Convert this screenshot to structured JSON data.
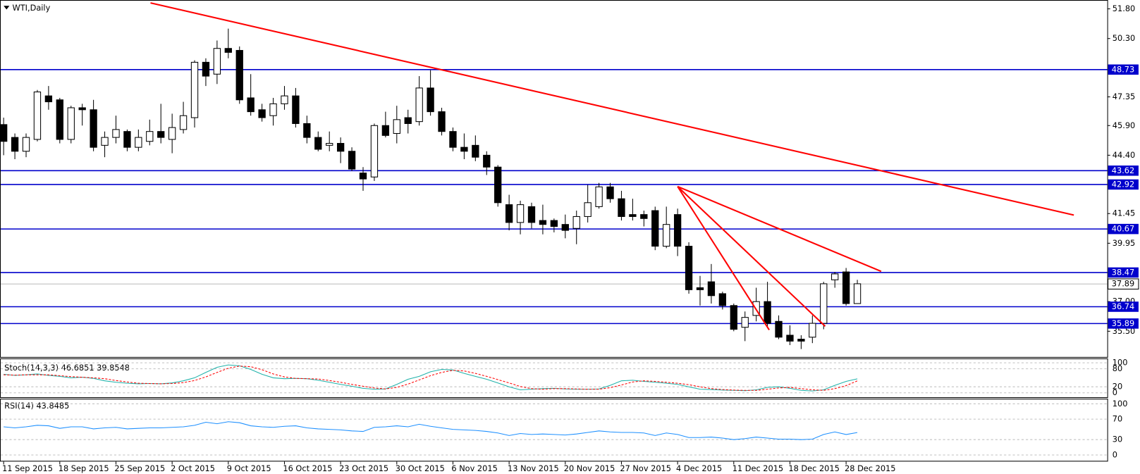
{
  "chart_data": [
    {
      "type": "candlestick",
      "title": "WTI,Daily",
      "categories": [
        "11 Sep 2015",
        null,
        null,
        null,
        null,
        "18 Sep 2015",
        null,
        null,
        null,
        null,
        "25 Sep 2015",
        null,
        null,
        null,
        null,
        "2 Oct 2015",
        null,
        null,
        null,
        null,
        "9 Oct 2015",
        null,
        null,
        null,
        null,
        "16 Oct 2015",
        null,
        null,
        null,
        null,
        "23 Oct 2015",
        null,
        null,
        null,
        null,
        "30 Oct 2015",
        null,
        null,
        null,
        null,
        "6 Nov 2015",
        null,
        null,
        null,
        null,
        "13 Nov 2015",
        null,
        null,
        null,
        null,
        "20 Nov 2015",
        null,
        null,
        null,
        null,
        "27 Nov 2015",
        null,
        null,
        null,
        null,
        "4 Dec 2015",
        null,
        null,
        null,
        null,
        "11 Dec 2015",
        null,
        null,
        null,
        null,
        "18 Dec 2015",
        null,
        null,
        null,
        null,
        "28 Dec 2015",
        null
      ],
      "open": [
        45.95,
        45.3,
        44.6,
        45.2,
        47.4,
        47.2,
        45.2,
        46.8,
        46.7,
        44.9,
        45.3,
        45.6,
        44.8,
        45.1,
        45.6,
        45.2,
        45.7,
        46.3,
        49.1,
        48.5,
        49.8,
        49.7,
        47.3,
        46.7,
        46.4,
        47.0,
        47.4,
        46.0,
        45.3,
        44.9,
        45.0,
        44.6,
        43.5,
        43.3,
        45.9,
        45.5,
        46.3,
        46.1,
        47.8,
        46.6,
        45.6,
        44.8,
        44.9,
        44.4,
        43.8,
        41.9,
        41.0,
        41.8,
        41.1,
        41.1,
        40.9,
        40.7,
        41.3,
        41.8,
        42.8,
        42.2,
        41.4,
        41.4,
        41.6,
        39.8,
        41.4,
        39.8,
        37.7,
        38.0,
        37.4,
        36.8,
        35.7,
        36.3,
        37.0,
        36.0,
        35.3,
        35.1,
        35.2,
        35.9,
        38.1,
        38.5,
        36.9
      ],
      "high": [
        46.3,
        45.5,
        45.5,
        47.7,
        47.9,
        47.3,
        46.9,
        47.0,
        47.2,
        45.6,
        46.4,
        45.7,
        45.7,
        46.2,
        47.0,
        46.5,
        47.1,
        49.2,
        49.3,
        50.2,
        50.8,
        49.9,
        48.5,
        47.0,
        47.3,
        47.9,
        47.8,
        46.4,
        45.6,
        45.6,
        45.3,
        44.8,
        43.8,
        46.0,
        46.6,
        46.9,
        46.7,
        48.4,
        48.7,
        46.8,
        45.8,
        45.5,
        45.4,
        44.6,
        43.9,
        42.4,
        42.1,
        42.0,
        41.9,
        41.2,
        41.4,
        41.6,
        42.9,
        43.0,
        43.0,
        42.6,
        42.2,
        41.6,
        41.8,
        41.8,
        41.7,
        40.0,
        38.3,
        38.9,
        37.5,
        36.9,
        36.5,
        37.7,
        38.0,
        36.3,
        35.8,
        35.3,
        36.3,
        38.0,
        38.5,
        38.7,
        38.1
      ],
      "low": [
        44.4,
        44.2,
        44.3,
        45.1,
        46.7,
        45.0,
        45.0,
        45.9,
        44.6,
        44.3,
        45.0,
        44.6,
        44.6,
        44.9,
        45.0,
        44.5,
        45.5,
        45.8,
        47.9,
        48.0,
        49.3,
        47.0,
        46.4,
        46.1,
        45.9,
        46.7,
        45.8,
        45.0,
        44.6,
        44.6,
        44.0,
        43.6,
        42.6,
        43.1,
        45.3,
        45.0,
        45.5,
        45.9,
        46.4,
        45.4,
        44.6,
        44.2,
        44.1,
        43.4,
        41.8,
        40.6,
        40.4,
        40.7,
        40.4,
        40.5,
        40.2,
        39.9,
        41.0,
        41.7,
        42.0,
        41.1,
        41.1,
        40.8,
        39.6,
        39.7,
        39.3,
        37.4,
        36.8,
        36.9,
        36.6,
        35.5,
        35.0,
        36.0,
        35.7,
        35.1,
        34.8,
        34.6,
        34.9,
        35.6,
        37.7,
        36.8,
        36.9
      ],
      "close": [
        45.1,
        44.6,
        45.3,
        47.6,
        47.1,
        45.2,
        46.8,
        46.7,
        44.8,
        45.3,
        45.7,
        44.8,
        45.3,
        45.6,
        45.3,
        45.8,
        46.4,
        49.1,
        48.4,
        49.8,
        49.6,
        47.2,
        46.6,
        46.3,
        47.0,
        47.4,
        46.0,
        45.3,
        44.7,
        45.0,
        44.6,
        43.7,
        43.2,
        45.9,
        45.4,
        46.2,
        46.0,
        47.8,
        46.6,
        45.6,
        44.8,
        44.6,
        44.3,
        43.8,
        42.0,
        41.0,
        41.9,
        41.0,
        40.9,
        40.8,
        40.6,
        41.3,
        42.0,
        42.8,
        42.2,
        41.3,
        41.3,
        41.2,
        39.8,
        40.9,
        39.8,
        37.6,
        37.6,
        37.3,
        36.8,
        35.6,
        36.2,
        37.0,
        35.9,
        35.2,
        35.0,
        35.0,
        35.9,
        37.9,
        38.4,
        36.9,
        37.9
      ],
      "ylim": [
        34.2,
        52.1
      ],
      "yticks": [
        {
          "value": 51.8,
          "label": "51.80"
        },
        {
          "value": 50.3,
          "label": "50.30"
        },
        47.35,
        {
          "value": 45.9,
          "label": "45.90"
        },
        {
          "value": 44.4,
          "label": "44.40"
        },
        41.45,
        39.95,
        {
          "value": 37,
          "label": "37.00"
        },
        {
          "value": 35.5,
          "label": "35.50"
        }
      ],
      "levels": [
        48.73,
        43.62,
        42.92,
        40.67,
        38.47,
        36.74,
        35.89
      ],
      "level_color": "#0000cc",
      "last_price": 37.89
    },
    {
      "type": "line",
      "title": "Stoch(14,3,3) 46.6851 39.8548",
      "ylim": [
        0,
        100
      ],
      "yticks": [
        0,
        20,
        80,
        100
      ],
      "series": [
        {
          "color": "#20b2aa",
          "dashed": false,
          "values": [
            62,
            58,
            60,
            63,
            58,
            55,
            50,
            52,
            48,
            40,
            35,
            32,
            30,
            31,
            30,
            33,
            40,
            50,
            68,
            85,
            93,
            90,
            78,
            62,
            50,
            47,
            48,
            47,
            42,
            35,
            28,
            22,
            15,
            12,
            13,
            28,
            45,
            55,
            70,
            78,
            76,
            65,
            55,
            45,
            33,
            20,
            10,
            12,
            14,
            15,
            13,
            12,
            12,
            13,
            25,
            40,
            42,
            38,
            35,
            32,
            28,
            20,
            12,
            11,
            9,
            8,
            7,
            10,
            18,
            20,
            15,
            8,
            6,
            10,
            25,
            38,
            46.6851
          ]
        },
        {
          "color": "#ff0000",
          "dashed": true,
          "values": [
            60,
            59,
            60,
            60,
            60,
            57,
            54,
            52,
            50,
            47,
            41,
            36,
            32,
            31,
            30,
            31,
            34,
            41,
            53,
            68,
            82,
            89,
            87,
            77,
            63,
            53,
            48,
            47,
            46,
            41,
            35,
            28,
            22,
            16,
            13,
            18,
            29,
            43,
            57,
            68,
            75,
            73,
            65,
            55,
            44,
            33,
            21,
            14,
            12,
            14,
            14,
            13,
            12,
            12,
            17,
            26,
            36,
            40,
            38,
            35,
            32,
            27,
            20,
            14,
            11,
            9,
            8,
            8,
            12,
            16,
            18,
            14,
            10,
            8,
            14,
            24,
            39.8548
          ]
        }
      ]
    },
    {
      "type": "line",
      "title": "RSI(14) 43.8485",
      "ylim": [
        0,
        100
      ],
      "yticks": [
        0,
        30,
        70,
        100
      ],
      "series": [
        {
          "color": "#1e90ff",
          "dashed": false,
          "values": [
            55,
            53,
            55,
            58,
            57,
            52,
            55,
            55,
            51,
            53,
            54,
            51,
            52,
            53,
            53,
            54,
            55,
            58,
            64,
            61,
            65,
            63,
            57,
            55,
            54,
            56,
            57,
            53,
            51,
            50,
            49,
            47,
            46,
            54,
            55,
            57,
            55,
            60,
            56,
            53,
            50,
            49,
            48,
            46,
            43,
            38,
            42,
            40,
            41,
            40,
            39,
            41,
            44,
            47,
            45,
            44,
            44,
            43,
            38,
            43,
            40,
            34,
            34,
            35,
            33,
            30,
            32,
            35,
            33,
            31,
            31,
            30,
            31,
            40,
            45,
            40,
            43.8485
          ]
        }
      ]
    }
  ]
}
